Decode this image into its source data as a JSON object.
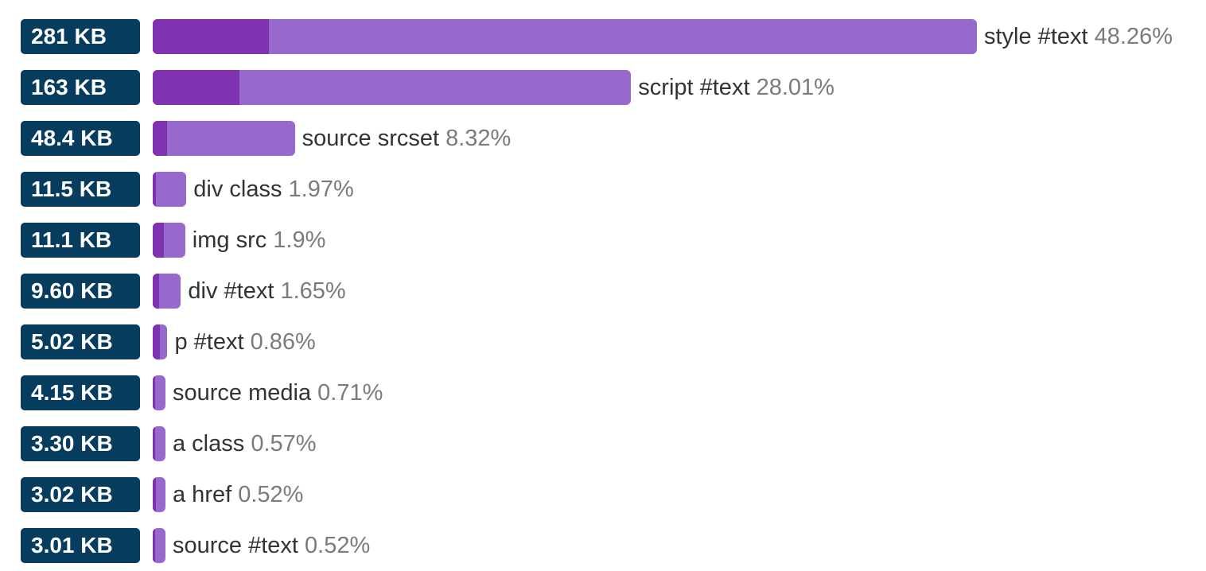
{
  "chart_data": {
    "type": "bar",
    "orientation": "horizontal",
    "colors": {
      "badge": "#063c5e",
      "bar": "#9869cc",
      "bar_highlight": "#8033b0",
      "label": "#333333",
      "percent": "#7b7b7b"
    },
    "rows": [
      {
        "size_label": "281 KB",
        "name": "style #text",
        "percent_label": "48.26%",
        "percent": 48.26,
        "highlight_percent": 6.8
      },
      {
        "size_label": "163 KB",
        "name": "script #text",
        "percent_label": "28.01%",
        "percent": 28.01,
        "highlight_percent": 5.1
      },
      {
        "size_label": "48.4 KB",
        "name": "source srcset",
        "percent_label": "8.32%",
        "percent": 8.32,
        "highlight_percent": 0.85
      },
      {
        "size_label": "11.5 KB",
        "name": "div class",
        "percent_label": "1.97%",
        "percent": 1.97,
        "highlight_percent": 0.2
      },
      {
        "size_label": "11.1 KB",
        "name": "img src",
        "percent_label": "1.9%",
        "percent": 1.9,
        "highlight_percent": 0.65
      },
      {
        "size_label": "9.60 KB",
        "name": "div #text",
        "percent_label": "1.65%",
        "percent": 1.65,
        "highlight_percent": 0.35
      },
      {
        "size_label": "5.02 KB",
        "name": "p #text",
        "percent_label": "0.86%",
        "percent": 0.86,
        "highlight_percent": 0.4
      },
      {
        "size_label": "4.15 KB",
        "name": "source media",
        "percent_label": "0.71%",
        "percent": 0.71,
        "highlight_percent": 0.05
      },
      {
        "size_label": "3.30 KB",
        "name": "a class",
        "percent_label": "0.57%",
        "percent": 0.57,
        "highlight_percent": 0.05
      },
      {
        "size_label": "3.02 KB",
        "name": "a href",
        "percent_label": "0.52%",
        "percent": 0.52,
        "highlight_percent": 0.2
      },
      {
        "size_label": "3.01 KB",
        "name": "source #text",
        "percent_label": "0.52%",
        "percent": 0.52,
        "highlight_percent": 0.05
      }
    ]
  }
}
